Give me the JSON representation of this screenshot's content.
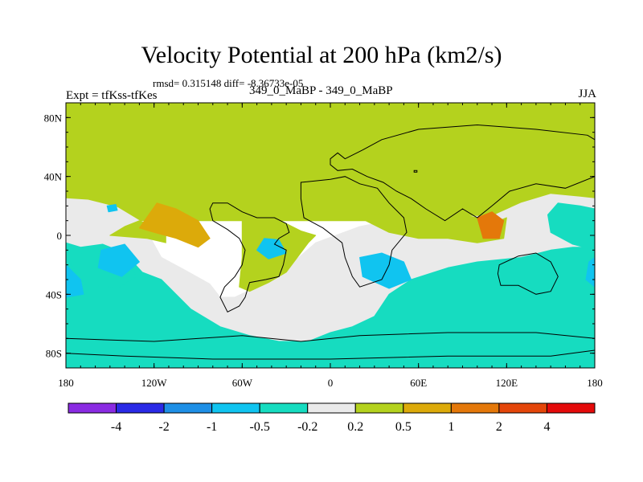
{
  "chart_data": {
    "type": "contour-map",
    "title": "Velocity Potential at 200 hPa (km2/s)",
    "stats": "rmsd= 0.315148 diff= -8.36733e-05",
    "expt": "Expt = tfKss-tfKes",
    "case": "349_0_MaBP - 349_0_MaBP",
    "season": "JJA",
    "xlim": [
      -180,
      180
    ],
    "ylim": [
      -90,
      90
    ],
    "x_ticks": [
      {
        "value": -180,
        "label": "180"
      },
      {
        "value": -120,
        "label": "120W"
      },
      {
        "value": -60,
        "label": "60W"
      },
      {
        "value": 0,
        "label": "0"
      },
      {
        "value": 60,
        "label": "60E"
      },
      {
        "value": 120,
        "label": "120E"
      },
      {
        "value": 180,
        "label": "180"
      }
    ],
    "y_ticks": [
      {
        "value": 80,
        "label": "80N"
      },
      {
        "value": 40,
        "label": "40N"
      },
      {
        "value": 0,
        "label": "0"
      },
      {
        "value": -40,
        "label": "40S"
      },
      {
        "value": -80,
        "label": "80S"
      }
    ],
    "colorbar": {
      "colors": [
        "#8a2be2",
        "#2a2ae6",
        "#1e8fe6",
        "#10c4f0",
        "#16dcc0",
        "#eaeaea",
        "#b4d21e",
        "#dcaa0a",
        "#e4780a",
        "#e4460a",
        "#e40a0a"
      ],
      "labels": [
        "-4",
        "-2",
        "-1",
        "-0.5",
        "-0.2",
        "0.2",
        "0.5",
        "1",
        "2",
        "4"
      ]
    },
    "level_colors": {
      "very_neg": "#10c4f0",
      "neg": "#16dcc0",
      "neutral": "#eaeaea",
      "pos": "#b4d21e",
      "high_pos": "#dcaa0a",
      "very_high_pos": "#e4780a"
    },
    "regions": [
      {
        "level": "pos",
        "name": "northern-positive-region",
        "points": [
          [
            -180,
            90
          ],
          [
            180,
            90
          ],
          [
            180,
            10
          ],
          [
            -180,
            10
          ]
        ]
      },
      {
        "level": "neutral",
        "name": "west-neutral-region",
        "points": [
          [
            -180,
            25
          ],
          [
            -165,
            24
          ],
          [
            -145,
            19
          ],
          [
            -130,
            10
          ],
          [
            -125,
            3
          ],
          [
            -115,
            -15
          ],
          [
            -100,
            -23
          ],
          [
            -82,
            -33
          ],
          [
            -75,
            -42
          ],
          [
            -65,
            -42
          ],
          [
            -50,
            -35
          ],
          [
            -40,
            -30
          ],
          [
            -25,
            -18
          ],
          [
            -10,
            -5
          ],
          [
            20,
            6
          ],
          [
            50,
            12
          ],
          [
            70,
            9
          ],
          [
            90,
            13
          ],
          [
            110,
            13
          ],
          [
            130,
            22
          ],
          [
            150,
            28
          ],
          [
            170,
            26
          ],
          [
            180,
            25
          ],
          [
            180,
            -90
          ],
          [
            -180,
            -90
          ]
        ]
      },
      {
        "level": "pos",
        "name": "pacific-positive-tongue",
        "points": [
          [
            -150,
            0
          ],
          [
            -140,
            6
          ],
          [
            -130,
            10
          ],
          [
            -120,
            6
          ],
          [
            -112,
            1
          ],
          [
            -112,
            -5
          ],
          [
            -125,
            -2
          ]
        ]
      },
      {
        "level": "pos",
        "name": "equatorial-positive-tongue",
        "points": [
          [
            -60,
            18
          ],
          [
            -45,
            15
          ],
          [
            -30,
            8
          ],
          [
            -20,
            3
          ],
          [
            -10,
            0
          ],
          [
            -15,
            -5
          ],
          [
            -30,
            -25
          ],
          [
            -42,
            -32
          ],
          [
            -55,
            -38
          ],
          [
            -62,
            -35
          ],
          [
            -60,
            -15
          ]
        ]
      },
      {
        "level": "pos",
        "name": "indian-positive-region",
        "points": [
          [
            20,
            12
          ],
          [
            40,
            16
          ],
          [
            60,
            18
          ],
          [
            80,
            16
          ],
          [
            100,
            12
          ],
          [
            115,
            10
          ],
          [
            120,
            12
          ],
          [
            118,
            -2
          ],
          [
            100,
            -5
          ],
          [
            80,
            -2
          ],
          [
            60,
            -2
          ],
          [
            40,
            2
          ]
        ]
      },
      {
        "level": "neg",
        "name": "southern-negative-region",
        "points": [
          [
            -180,
            -5
          ],
          [
            -170,
            -8
          ],
          [
            -155,
            -6
          ],
          [
            -140,
            -12
          ],
          [
            -128,
            -25
          ],
          [
            -115,
            -30
          ],
          [
            -105,
            -40
          ],
          [
            -95,
            -50
          ],
          [
            -75,
            -62
          ],
          [
            -55,
            -68
          ],
          [
            -35,
            -72
          ],
          [
            -15,
            -72
          ],
          [
            0,
            -66
          ],
          [
            15,
            -62
          ],
          [
            30,
            -55
          ],
          [
            40,
            -40
          ],
          [
            55,
            -30
          ],
          [
            80,
            -22
          ],
          [
            100,
            -18
          ],
          [
            130,
            -15
          ],
          [
            150,
            -10
          ],
          [
            165,
            -8
          ],
          [
            180,
            -8
          ],
          [
            180,
            -90
          ],
          [
            -180,
            -90
          ]
        ]
      },
      {
        "level": "neg",
        "name": "pacific-negative-inner",
        "points": [
          [
            -180,
            -15
          ],
          [
            -160,
            -10
          ],
          [
            -140,
            -15
          ],
          [
            -132,
            -28
          ],
          [
            -145,
            -36
          ],
          [
            -168,
            -32
          ]
        ]
      },
      {
        "level": "neg",
        "name": "east-pacific-negative",
        "points": [
          [
            155,
            22
          ],
          [
            170,
            20
          ],
          [
            180,
            18
          ],
          [
            180,
            -10
          ],
          [
            165,
            -6
          ],
          [
            150,
            2
          ],
          [
            148,
            14
          ]
        ]
      },
      {
        "level": "very_neg",
        "name": "pacific-strong-negative",
        "points": [
          [
            -156,
            -10
          ],
          [
            -140,
            -6
          ],
          [
            -130,
            -18
          ],
          [
            -142,
            -28
          ],
          [
            -158,
            -22
          ]
        ]
      },
      {
        "level": "very_neg",
        "name": "west-edge-strong-negative",
        "points": [
          [
            -180,
            -20
          ],
          [
            -170,
            -30
          ],
          [
            -168,
            -40
          ],
          [
            -180,
            -42
          ]
        ]
      },
      {
        "level": "very_neg",
        "name": "atlantic-strong-negative",
        "points": [
          [
            -45,
            -2
          ],
          [
            -35,
            -3
          ],
          [
            -30,
            -12
          ],
          [
            -42,
            -16
          ],
          [
            -50,
            -10
          ]
        ]
      },
      {
        "level": "very_neg",
        "name": "africa-strong-negative",
        "points": [
          [
            20,
            -15
          ],
          [
            35,
            -12
          ],
          [
            50,
            -18
          ],
          [
            55,
            -30
          ],
          [
            40,
            -36
          ],
          [
            22,
            -28
          ]
        ]
      },
      {
        "level": "very_neg",
        "name": "east-edge-strong-negative",
        "points": [
          [
            176,
            -18
          ],
          [
            180,
            -15
          ],
          [
            180,
            -35
          ],
          [
            174,
            -30
          ]
        ]
      },
      {
        "level": "very_neg",
        "name": "mid-pacific-dot",
        "points": [
          [
            -152,
            20
          ],
          [
            -146,
            21
          ],
          [
            -145,
            17
          ],
          [
            -151,
            16
          ]
        ]
      },
      {
        "level": "high_pos",
        "name": "pacific-high-positive",
        "points": [
          [
            -130,
            5
          ],
          [
            -118,
            22
          ],
          [
            -105,
            18
          ],
          [
            -90,
            10
          ],
          [
            -82,
            -2
          ],
          [
            -90,
            -8
          ],
          [
            -105,
            -2
          ],
          [
            -120,
            2
          ]
        ]
      },
      {
        "level": "very_high_pos",
        "name": "indian-high-positive",
        "points": [
          [
            100,
            12
          ],
          [
            110,
            16
          ],
          [
            118,
            10
          ],
          [
            115,
            -2
          ],
          [
            104,
            -2
          ]
        ]
      }
    ],
    "land_outlines": [
      {
        "name": "south-america-outline",
        "points": [
          [
            -80,
            22
          ],
          [
            -70,
            22
          ],
          [
            -60,
            16
          ],
          [
            -50,
            12
          ],
          [
            -38,
            12
          ],
          [
            -30,
            8
          ],
          [
            -28,
            2
          ],
          [
            -35,
            -2
          ],
          [
            -38,
            -6
          ],
          [
            -30,
            -10
          ],
          [
            -32,
            -20
          ],
          [
            -35,
            -28
          ],
          [
            -44,
            -30
          ],
          [
            -55,
            -32
          ],
          [
            -58,
            -42
          ],
          [
            -62,
            -48
          ],
          [
            -70,
            -52
          ],
          [
            -75,
            -42
          ],
          [
            -72,
            -35
          ],
          [
            -65,
            -28
          ],
          [
            -60,
            -20
          ],
          [
            -58,
            -10
          ],
          [
            -62,
            -2
          ],
          [
            -70,
            4
          ],
          [
            -80,
            10
          ],
          [
            -82,
            18
          ]
        ]
      },
      {
        "name": "africa-outline",
        "points": [
          [
            -20,
            36
          ],
          [
            0,
            38
          ],
          [
            10,
            40
          ],
          [
            20,
            35
          ],
          [
            32,
            32
          ],
          [
            40,
            22
          ],
          [
            50,
            12
          ],
          [
            52,
            2
          ],
          [
            42,
            -10
          ],
          [
            40,
            -20
          ],
          [
            35,
            -30
          ],
          [
            20,
            -35
          ],
          [
            15,
            -28
          ],
          [
            10,
            -15
          ],
          [
            8,
            -5
          ],
          [
            -5,
            5
          ],
          [
            -18,
            12
          ],
          [
            -20,
            25
          ]
        ]
      },
      {
        "name": "eurasia-outline",
        "points": [
          [
            0,
            52
          ],
          [
            5,
            56
          ],
          [
            10,
            52
          ],
          [
            22,
            58
          ],
          [
            35,
            65
          ],
          [
            60,
            72
          ],
          [
            100,
            75
          ],
          [
            140,
            72
          ],
          [
            175,
            68
          ],
          [
            180,
            65
          ],
          [
            180,
            40
          ],
          [
            160,
            32
          ],
          [
            140,
            35
          ],
          [
            122,
            30
          ],
          [
            110,
            20
          ],
          [
            100,
            12
          ],
          [
            90,
            18
          ],
          [
            78,
            10
          ],
          [
            65,
            18
          ],
          [
            55,
            25
          ],
          [
            45,
            30
          ],
          [
            36,
            36
          ],
          [
            25,
            40
          ],
          [
            15,
            45
          ],
          [
            5,
            44
          ],
          [
            0,
            48
          ]
        ]
      },
      {
        "name": "australia-outline",
        "points": [
          [
            115,
            -20
          ],
          [
            128,
            -14
          ],
          [
            140,
            -12
          ],
          [
            150,
            -18
          ],
          [
            155,
            -28
          ],
          [
            150,
            -38
          ],
          [
            140,
            -40
          ],
          [
            128,
            -34
          ],
          [
            116,
            -34
          ],
          [
            114,
            -26
          ]
        ]
      },
      {
        "name": "antarctica-outline",
        "points": [
          [
            -180,
            -70
          ],
          [
            -120,
            -72
          ],
          [
            -60,
            -68
          ],
          [
            -20,
            -72
          ],
          [
            20,
            -68
          ],
          [
            80,
            -66
          ],
          [
            140,
            -66
          ],
          [
            180,
            -70
          ],
          [
            180,
            -78
          ],
          [
            150,
            -82
          ],
          [
            80,
            -82
          ],
          [
            0,
            -84
          ],
          [
            -80,
            -84
          ],
          [
            -140,
            -82
          ],
          [
            -180,
            -80
          ]
        ]
      },
      {
        "name": "small-island-outline",
        "points": [
          [
            57,
            44
          ],
          [
            59,
            44
          ],
          [
            59,
            43
          ],
          [
            57,
            43
          ]
        ]
      }
    ]
  }
}
